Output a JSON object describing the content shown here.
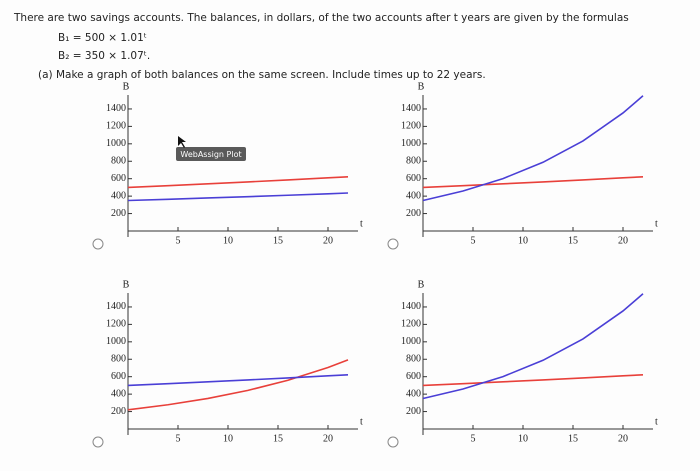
{
  "question": {
    "intro": "There are two savings accounts. The balances, in dollars, of the two accounts after t years are given by the formulas",
    "formula1": "B₁ = 500 × 1.01ᵗ",
    "formula2": "B₂ = 350 × 1.07ᵗ.",
    "part_a": "(a) Make a graph of both balances on the same screen. Include times up to 22 years."
  },
  "tooltip": "WebAssign Plot",
  "chart_data": [
    {
      "type": "line",
      "xlabel": "t",
      "ylabel": "B",
      "xlim": [
        0,
        23
      ],
      "ylim": [
        0,
        1560
      ],
      "xticks": [
        5,
        10,
        15,
        20
      ],
      "yticks": [
        200,
        400,
        600,
        800,
        1000,
        1200,
        1400
      ],
      "x": [
        0,
        4,
        8,
        12,
        16,
        20,
        22
      ],
      "series": [
        {
          "color": "#e8403a",
          "values": [
            500,
            520,
            541,
            563,
            586,
            610,
            622
          ]
        },
        {
          "color": "#4a3fd6",
          "values": [
            350,
            364,
            379,
            394,
            410,
            427,
            436
          ]
        }
      ]
    },
    {
      "type": "line",
      "xlabel": "t",
      "ylabel": "B",
      "xlim": [
        0,
        23
      ],
      "ylim": [
        0,
        1560
      ],
      "xticks": [
        5,
        10,
        15,
        20
      ],
      "yticks": [
        200,
        400,
        600,
        800,
        1000,
        1200,
        1400
      ],
      "x": [
        0,
        4,
        8,
        12,
        16,
        20,
        22
      ],
      "series": [
        {
          "color": "#e8403a",
          "values": [
            500,
            520,
            541,
            563,
            586,
            610,
            622
          ]
        },
        {
          "color": "#4a3fd6",
          "values": [
            350,
            459,
            601,
            788,
            1033,
            1354,
            1551
          ]
        }
      ]
    },
    {
      "type": "line",
      "xlabel": "t",
      "ylabel": "B",
      "xlim": [
        0,
        23
      ],
      "ylim": [
        0,
        1560
      ],
      "xticks": [
        5,
        10,
        15,
        20
      ],
      "yticks": [
        200,
        400,
        600,
        800,
        1000,
        1200,
        1400
      ],
      "x": [
        0,
        4,
        8,
        12,
        16,
        20,
        22
      ],
      "series": [
        {
          "color": "#e8403a",
          "values": [
            220,
            278,
            351,
            443,
            559,
            706,
            793
          ]
        },
        {
          "color": "#4a3fd6",
          "values": [
            500,
            520,
            541,
            563,
            586,
            610,
            622
          ]
        }
      ]
    },
    {
      "type": "line",
      "xlabel": "t",
      "ylabel": "B",
      "xlim": [
        0,
        23
      ],
      "ylim": [
        0,
        1560
      ],
      "xticks": [
        5,
        10,
        15,
        20
      ],
      "yticks": [
        200,
        400,
        600,
        800,
        1000,
        1200,
        1400
      ],
      "x": [
        0,
        4,
        8,
        12,
        16,
        20,
        22
      ],
      "series": [
        {
          "color": "#e8403a",
          "values": [
            500,
            520,
            541,
            563,
            586,
            610,
            622
          ]
        },
        {
          "color": "#4a3fd6",
          "values": [
            350,
            459,
            601,
            788,
            1033,
            1354,
            1551
          ]
        }
      ]
    }
  ]
}
